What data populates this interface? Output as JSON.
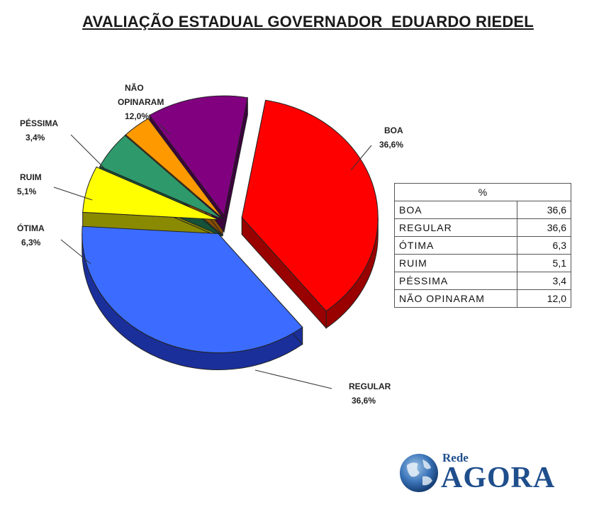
{
  "chart_data": {
    "type": "pie",
    "title": "AVALIAÇÃO ESTADUAL GOVERNADOR  EDUARDO RIEDEL",
    "slices": [
      {
        "key": "boa",
        "label": "BOA",
        "value": 36.6,
        "value_text": "36,6%",
        "color": "#ff0000",
        "side": "#990000"
      },
      {
        "key": "regular",
        "label": "REGULAR",
        "value": 36.6,
        "value_text": "36,6%",
        "color": "#3b6cff",
        "side": "#1a2f9a"
      },
      {
        "key": "otima",
        "label": "ÓTIMA",
        "value": 6.3,
        "value_text": "6,3%",
        "color": "#ffff00",
        "side": "#8a8a00"
      },
      {
        "key": "ruim",
        "label": "RUIM",
        "value": 5.1,
        "value_text": "5,1%",
        "color": "#2e9a6b",
        "side": "#155238"
      },
      {
        "key": "pessima",
        "label": "PÉSSIMA",
        "value": 3.4,
        "value_text": "3,4%",
        "color": "#ff9900",
        "side": "#8a4d00"
      },
      {
        "key": "nao_opinaram",
        "label": "NÃO OPINARAM",
        "value": 12.0,
        "value_text": "12,0%",
        "color": "#800080",
        "side": "#3d003d"
      }
    ],
    "table": {
      "header": "%",
      "rows": [
        {
          "label": "BOA",
          "value": "36,6"
        },
        {
          "label": "REGULAR",
          "value": "36,6"
        },
        {
          "label": "ÓTIMA",
          "value": "6,3"
        },
        {
          "label": "RUIM",
          "value": "5,1"
        },
        {
          "label": "PÉSSIMA",
          "value": "3,4"
        },
        {
          "label": "NÃO OPINARAM",
          "value": "12,0"
        }
      ]
    }
  },
  "logo": {
    "rede": "Rede",
    "agora": "AGORA",
    "icon": "globe-icon",
    "color": "#1f4e8c"
  }
}
